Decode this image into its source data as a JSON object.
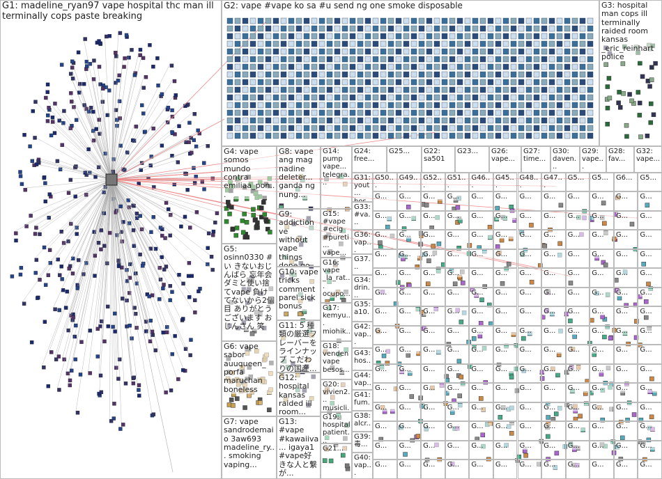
{
  "groups": [
    {
      "label": "G1: madeline_ryan97 vape hospital thc man ill terminally cops paste breaking"
    },
    {
      "label": "G2: vape #vape ko sa #u send ng one smoke disposable"
    },
    {
      "label": "G3: hospital man cops ill terminally raided room kansas _eric_reinhart police"
    },
    {
      "label": "G4: vape somos mundo contra emiliaa_pon..."
    },
    {
      "label": "G5: osinn0330 #い きないおじんばら 忘年会 ダミと使い捨てvape 負けてないから2個目 ありがとうございます おじんさん 笑"
    },
    {
      "label": "G6: vape sabor auuqueen_ porfa maruchan boneless"
    },
    {
      "label": "G7: vape sandrodemaio 3aw693 madeline_ry... smoking vaping..."
    },
    {
      "label": "G8: vape ang mag nadine deleter... ganda ng nung..."
    },
    {
      "label": "G9: addiction ve without vape things done go..."
    },
    {
      "label": "G10: vape tricks comment parel sick bonus"
    },
    {
      "label": "G11: 5 種類の厳選フレーバーをラインナップ こだわりの国産..."
    },
    {
      "label": "G12: hospital kansas raided ill room..."
    },
    {
      "label": "G13: #vape #kawaiiva... igaya1 #vape好きな人と繋が..."
    },
    {
      "label": "G14: pump vape... telegra..."
    },
    {
      "label": "G15: #vape #ecig #pureti... vape..."
    },
    {
      "label": "G16: vape _la_rat... ocupo..."
    },
    {
      "label": "G17: kemyu... miohik... doro_v..."
    },
    {
      "label": "G18: venden vape besos..."
    },
    {
      "label": "G20: vivien2... musicli..."
    },
    {
      "label": "G19: hospital patient..."
    },
    {
      "label": "G21..."
    },
    {
      "label": "G24: free..."
    },
    {
      "label": "G25..."
    },
    {
      "label": "G22: sa501"
    },
    {
      "label": "G23..."
    },
    {
      "label": "G26: vape..."
    },
    {
      "label": "G27: time..."
    },
    {
      "label": "G30: daven..."
    },
    {
      "label": "G29: vape..."
    },
    {
      "label": "G28: fav..."
    },
    {
      "label": "G32: vape..."
    },
    {
      "label": "G31: yout... hos..."
    },
    {
      "label": "G33: #va..."
    },
    {
      "label": "G36: vap..."
    },
    {
      "label": "G37..."
    },
    {
      "label": "G34: drin..."
    },
    {
      "label": "G35: a10..."
    },
    {
      "label": "G42: vap..."
    },
    {
      "label": "G43: hos..."
    },
    {
      "label": "G44: vap..."
    },
    {
      "label": "G41: fum..."
    },
    {
      "label": "G38: alcr..."
    },
    {
      "label": "G39: 毒..."
    },
    {
      "label": "G40: vap..."
    },
    {
      "label": "G50..."
    },
    {
      "label": "G49..."
    },
    {
      "label": "G52..."
    },
    {
      "label": "G51..."
    },
    {
      "label": "G46..."
    },
    {
      "label": "G45..."
    },
    {
      "label": "G48..."
    },
    {
      "label": "G47..."
    },
    {
      "label": "G5..."
    },
    {
      "label": "G5..."
    },
    {
      "label": "G6..."
    },
    {
      "label": "G5..."
    }
  ],
  "grid_labels": [
    "G...",
    "G...",
    "G...",
    "G...",
    "G...",
    "G...",
    "G...",
    "G...",
    "G...",
    "G...",
    "G...",
    "G...",
    "G...",
    "G...",
    "G...",
    "G...",
    "G...",
    "G...",
    "G...",
    "G...",
    "G...",
    "G...",
    "G...",
    "G...",
    "G...",
    "G...",
    "G...",
    "G...",
    "G...",
    "G...",
    "G...",
    "G...",
    "G...",
    "G...",
    "G...",
    "G...",
    "G...",
    "G...",
    "G...",
    "G...",
    "G...",
    "G...",
    "G...",
    "G...",
    "G...",
    "G...",
    "G...",
    "G...",
    "G...",
    "G...",
    "G...",
    "G...",
    "G...",
    "G...",
    "G...",
    "G...",
    "G...",
    "G...",
    "G...",
    "G...",
    "G...",
    "G...",
    "G...",
    "G...",
    "G...",
    "G...",
    "G...",
    "G...",
    "G...",
    "G...",
    "G...",
    "G...",
    "G...",
    "G...",
    "G...",
    "G...",
    "G...",
    "G...",
    "G...",
    "G...",
    "G...",
    "G...",
    "G...",
    "G...",
    "G...",
    "G...",
    "G...",
    "G...",
    "G...",
    "G...",
    "G...",
    "G...",
    "G...",
    "G...",
    "G...",
    "G...",
    "G...",
    "G...",
    "G...",
    "G...",
    "G...",
    "G...",
    "G...",
    "G...",
    "G...",
    "G...",
    "G...",
    "G...",
    "G...",
    "G...",
    "G...",
    "G...",
    "G...",
    "G...",
    "G...",
    "G...",
    "G...",
    "G...",
    "G...",
    "G...",
    "G...",
    "G...",
    "G...",
    "G...",
    "G...",
    "G...",
    "G...",
    "G...",
    "G...",
    "G...",
    "G...",
    "G...",
    "G...",
    "G...",
    "G...",
    "G...",
    "G...",
    "G...",
    "G...",
    "G...",
    "G...",
    "G...",
    "G...",
    "G...",
    "G...",
    "G...",
    "G...",
    "G...",
    "G...",
    "G...",
    "G...",
    "G...",
    "G...",
    "G...",
    "G...",
    "G...",
    "G...",
    "G...",
    "G...",
    "G...",
    "G...",
    "G...",
    "G...",
    "G...",
    "G...",
    "G...",
    "G...",
    "G...",
    "G...",
    "G...",
    "G...",
    "G...",
    "G...",
    "G...",
    "G...",
    "G...",
    "G...",
    "G...",
    "G...",
    "G..."
  ]
}
